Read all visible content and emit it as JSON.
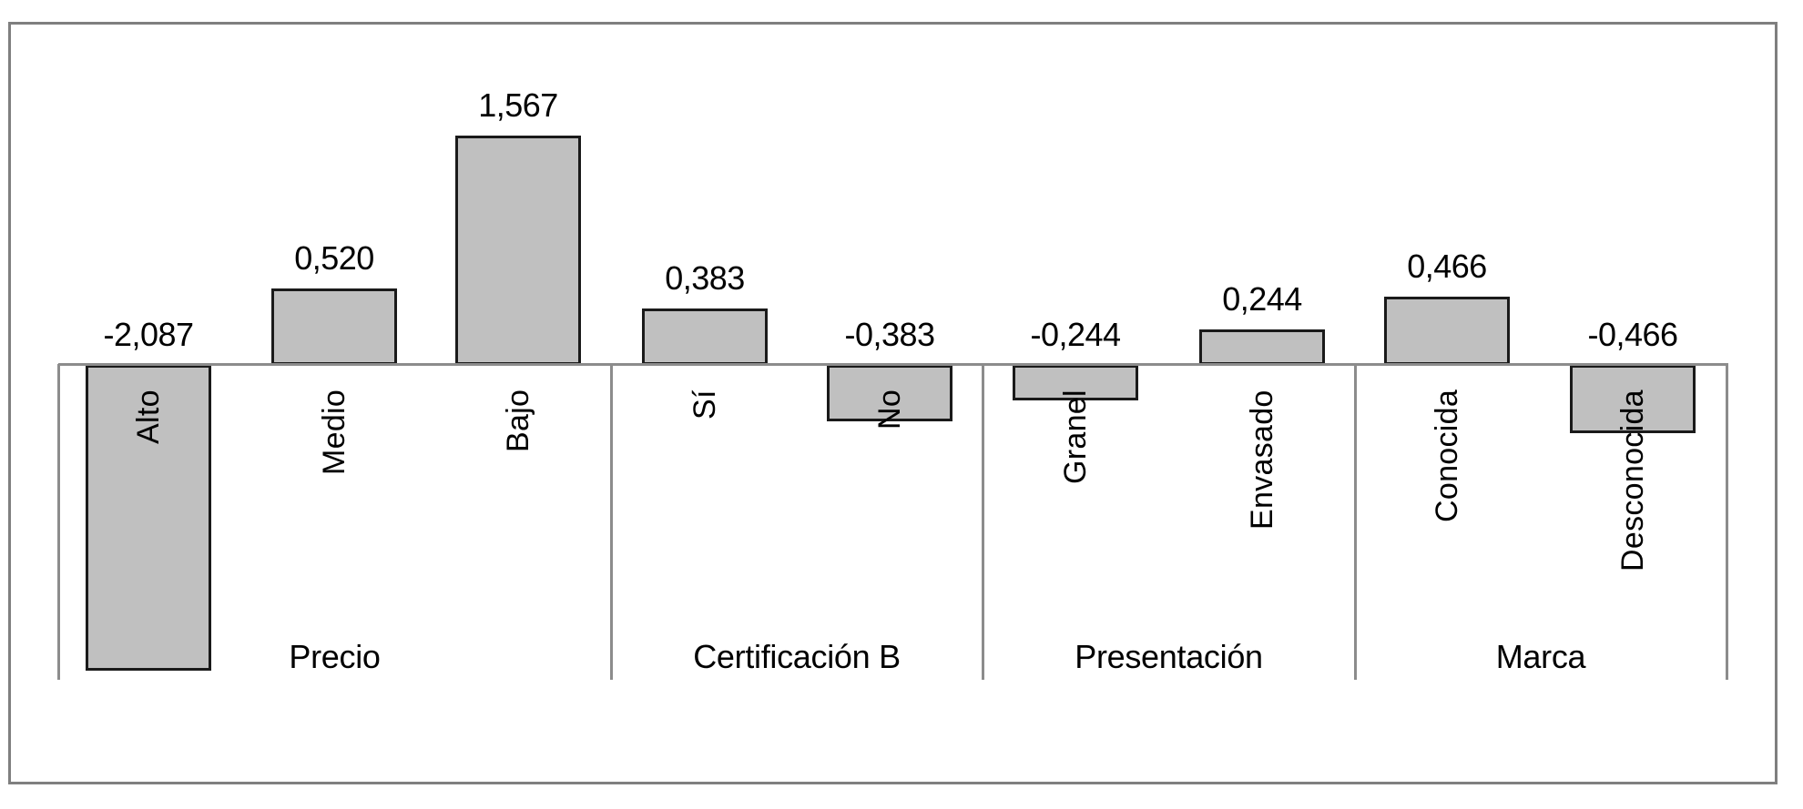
{
  "chart_data": {
    "type": "bar",
    "title": "",
    "xlabel": "",
    "ylabel": "",
    "grid": false,
    "legend": null,
    "ylim": [
      -2.2,
      1.8
    ],
    "decimal_separator": ",",
    "groups": [
      {
        "name": "Precio",
        "categories": [
          "Alto",
          "Medio",
          "Bajo"
        ],
        "values": [
          -2.087,
          0.52,
          1.567
        ]
      },
      {
        "name": "Certificación B",
        "categories": [
          "Sí",
          "No"
        ],
        "values": [
          0.383,
          -0.383
        ]
      },
      {
        "name": "Presentación",
        "categories": [
          "Granel",
          "Envasado"
        ],
        "values": [
          -0.244,
          0.244
        ]
      },
      {
        "name": "Marca",
        "categories": [
          "Conocida",
          "Desconocida"
        ],
        "values": [
          0.466,
          -0.466
        ]
      }
    ],
    "categories": [
      "Alto",
      "Medio",
      "Bajo",
      "Sí",
      "No",
      "Granel",
      "Envasado",
      "Conocida",
      "Desconocida"
    ],
    "values": [
      -2.087,
      0.52,
      1.567,
      0.383,
      -0.383,
      -0.244,
      0.244,
      0.466,
      -0.466
    ],
    "data_labels": [
      "-2,087",
      "0,520",
      "1,567",
      "0,383",
      "-0,383",
      "-0,244",
      "0,244",
      "0,466",
      "-0,466"
    ],
    "colors": {
      "bar_fill": "#c0c0c0",
      "bar_border": "#1a1a1a",
      "axis": "#8c8c8c",
      "frame": "#7f7f7f"
    }
  }
}
